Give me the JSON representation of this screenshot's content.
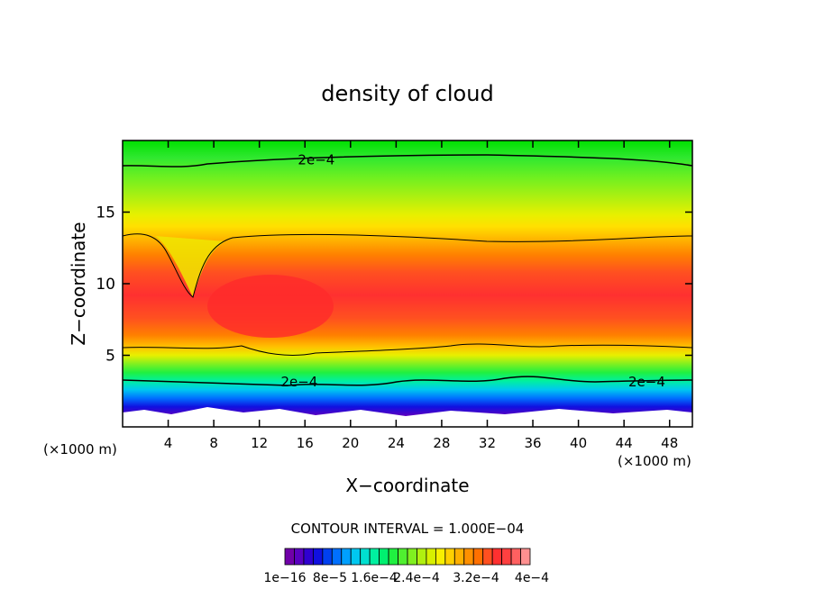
{
  "chart_data": {
    "type": "heatmap",
    "title": "density of cloud",
    "xlabel": "X−coordinate",
    "ylabel": "Z−coordinate",
    "x_unit": "(×1000 m)",
    "y_unit": "(×1000 m)",
    "xlim": [
      0,
      50
    ],
    "ylim": [
      0,
      20
    ],
    "x_ticks": [
      4,
      8,
      12,
      16,
      20,
      24,
      28,
      32,
      36,
      40,
      44,
      48
    ],
    "y_ticks": [
      5,
      10,
      15
    ],
    "contour_interval_text": "CONTOUR INTERVAL = 1.000E−04",
    "contour_labels": [
      {
        "text": "2e−4",
        "x": 17,
        "z": 18.7
      },
      {
        "text": "2e−4",
        "x": 15.5,
        "z": 3.2
      },
      {
        "text": "2e−4",
        "x": 46,
        "z": 3.2
      }
    ],
    "colorbar_labels": [
      "1e−16",
      "8e−5",
      "1.6e−4",
      "2.4e−4",
      "3.2e−4",
      "4e−4"
    ],
    "colorbar_levels": [
      "#7000a8",
      "#5a00c0",
      "#3000d0",
      "#1010e0",
      "#0040f0",
      "#0070ff",
      "#00a0ff",
      "#00c8f0",
      "#00e0d0",
      "#00f0a0",
      "#00f070",
      "#20f040",
      "#50f030",
      "#80f020",
      "#b0f010",
      "#d8f000",
      "#f8f000",
      "#ffd000",
      "#ffb000",
      "#ff9000",
      "#ff7000",
      "#ff5020",
      "#ff3030",
      "#ff4040",
      "#ff6060",
      "#ff9090"
    ],
    "grid": false,
    "legend": "bottom"
  }
}
